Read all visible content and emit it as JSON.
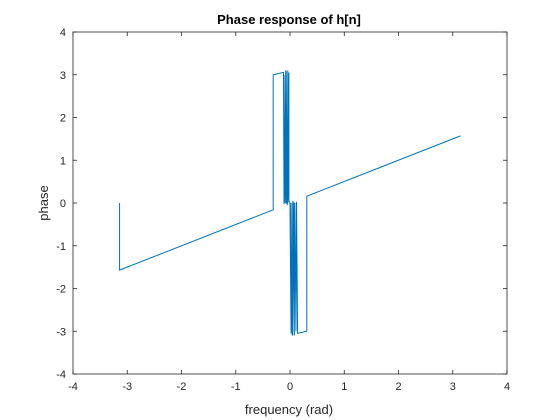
{
  "chart_data": {
    "type": "line",
    "title": "Phase response of h[n]",
    "xlabel": "frequency (rad)",
    "ylabel": "phase",
    "xlim": [
      -4,
      4
    ],
    "ylim": [
      -4,
      4
    ],
    "xticks": [
      "-4",
      "-3",
      "-2",
      "-1",
      "0",
      "1",
      "2",
      "3",
      "4"
    ],
    "yticks": [
      "-4",
      "-3",
      "-2",
      "-1",
      "0",
      "1",
      "2",
      "3",
      "4"
    ],
    "grid": false,
    "box": true,
    "colors": {
      "line": "#0072BD",
      "axes": "#262626",
      "background": "#ffffff"
    },
    "series": [
      {
        "x": [
          -3.1416,
          -3.1416,
          -0.31,
          -0.31,
          -0.14,
          -0.12,
          -0.11,
          -0.11,
          -0.09,
          -0.08,
          -0.07,
          -0.07,
          -0.05,
          -0.04,
          -0.04,
          -0.02,
          -0.02,
          0.0,
          0.0,
          0.02,
          0.02,
          0.04,
          0.05,
          0.05,
          0.07,
          0.08,
          0.09,
          0.11,
          0.12,
          0.14,
          0.31,
          0.31,
          3.1416
        ],
        "y": [
          0.0,
          -1.57,
          -0.16,
          3.0,
          3.05,
          3.05,
          -0.03,
          3.0,
          0.0,
          3.1,
          -0.02,
          3.1,
          -0.05,
          3.1,
          0.0,
          3.05,
          0.05,
          0.0,
          -0.05,
          -3.05,
          0.0,
          -3.1,
          0.05,
          -3.1,
          0.02,
          -3.1,
          0.0,
          -3.0,
          0.03,
          -3.05,
          -3.0,
          0.16,
          1.57
        ]
      }
    ]
  }
}
